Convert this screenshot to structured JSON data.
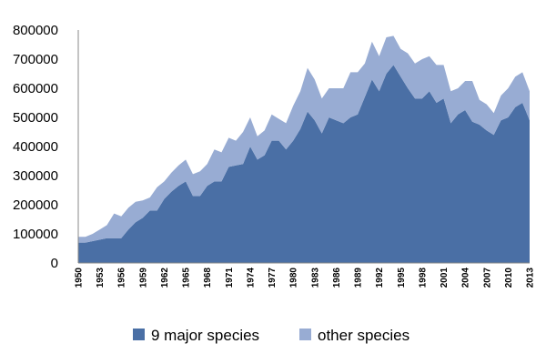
{
  "chart_data": {
    "type": "area",
    "stacked": true,
    "title": "",
    "xlabel": "",
    "ylabel": "",
    "ylim": [
      0,
      800000
    ],
    "yticks": [
      0,
      100000,
      200000,
      300000,
      400000,
      500000,
      600000,
      700000,
      800000
    ],
    "ytick_labels": [
      "0",
      "100000",
      "200000",
      "300000",
      "400000",
      "500000",
      "600000",
      "700000",
      "800000"
    ],
    "xlim": [
      1950,
      2013
    ],
    "xticks": [
      1950,
      1953,
      1956,
      1959,
      1962,
      1965,
      1968,
      1971,
      1974,
      1977,
      1980,
      1983,
      1986,
      1989,
      1992,
      1995,
      1998,
      2001,
      2004,
      2007,
      2010,
      2013
    ],
    "xtick_labels": [
      "1950",
      "1953",
      "1956",
      "1959",
      "1962",
      "1965",
      "1968",
      "1971",
      "1974",
      "1977",
      "1980",
      "1983",
      "1986",
      "1989",
      "1992",
      "1995",
      "1998",
      "2001",
      "2004",
      "2007",
      "2010",
      "2013"
    ],
    "grid": false,
    "legend_position": "bottom",
    "x": [
      1950,
      1951,
      1952,
      1953,
      1954,
      1955,
      1956,
      1957,
      1958,
      1959,
      1960,
      1961,
      1962,
      1963,
      1964,
      1965,
      1966,
      1967,
      1968,
      1969,
      1970,
      1971,
      1972,
      1973,
      1974,
      1975,
      1976,
      1977,
      1978,
      1979,
      1980,
      1981,
      1982,
      1983,
      1984,
      1985,
      1986,
      1987,
      1988,
      1989,
      1990,
      1991,
      1992,
      1993,
      1994,
      1995,
      1996,
      1997,
      1998,
      1999,
      2000,
      2001,
      2002,
      2003,
      2004,
      2005,
      2006,
      2007,
      2008,
      2009,
      2010,
      2011,
      2012,
      2013
    ],
    "series": [
      {
        "name": "9 major species",
        "color": "#4a6fa5",
        "values": [
          70000,
          70000,
          75000,
          80000,
          85000,
          85000,
          85000,
          115000,
          140000,
          155000,
          180000,
          180000,
          220000,
          245000,
          265000,
          280000,
          230000,
          230000,
          265000,
          280000,
          280000,
          330000,
          335000,
          340000,
          400000,
          355000,
          370000,
          420000,
          420000,
          390000,
          420000,
          460000,
          520000,
          490000,
          445000,
          500000,
          490000,
          480000,
          500000,
          510000,
          570000,
          630000,
          590000,
          650000,
          680000,
          640000,
          600000,
          565000,
          565000,
          590000,
          550000,
          565000,
          480000,
          510000,
          525000,
          485000,
          475000,
          455000,
          440000,
          490000,
          500000,
          535000,
          550000,
          490000
        ]
      },
      {
        "name": "other species",
        "color": "#98acd3",
        "values": [
          20000,
          20000,
          25000,
          35000,
          45000,
          85000,
          75000,
          75000,
          70000,
          60000,
          45000,
          80000,
          60000,
          65000,
          70000,
          75000,
          75000,
          85000,
          75000,
          110000,
          100000,
          100000,
          85000,
          110000,
          100000,
          80000,
          85000,
          90000,
          75000,
          90000,
          120000,
          130000,
          150000,
          140000,
          120000,
          100000,
          110000,
          120000,
          155000,
          145000,
          115000,
          130000,
          120000,
          125000,
          100000,
          95000,
          120000,
          120000,
          135000,
          120000,
          130000,
          115000,
          110000,
          90000,
          100000,
          140000,
          85000,
          90000,
          75000,
          85000,
          100000,
          105000,
          105000,
          100000
        ]
      }
    ]
  }
}
